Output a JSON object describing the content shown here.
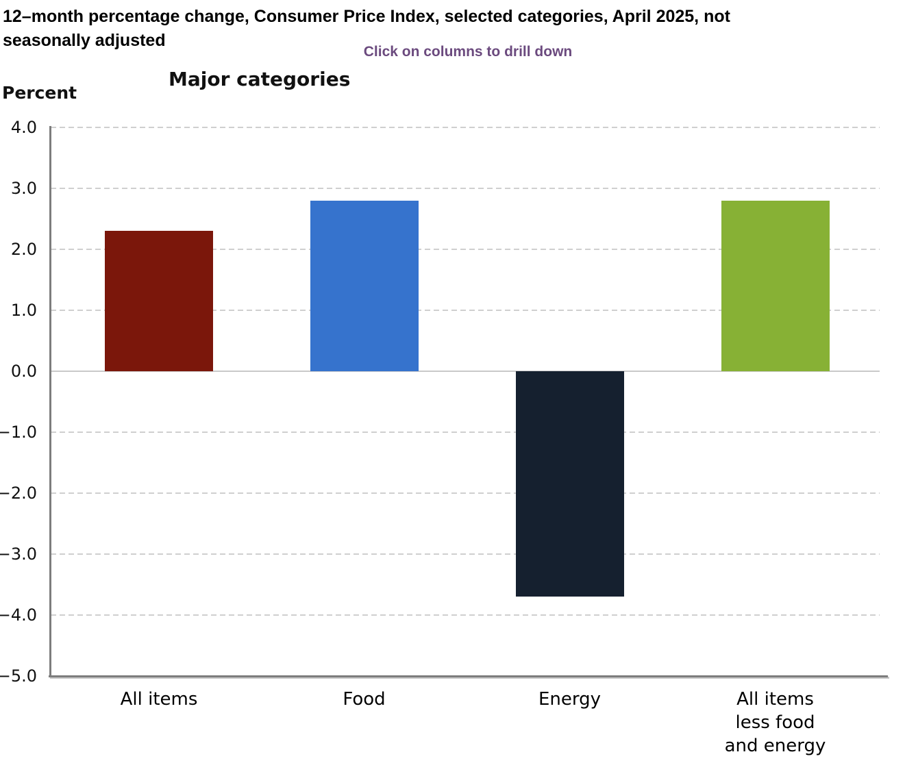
{
  "header": {
    "title_line1": "12–month percentage change, Consumer Price Index, selected categories, April 2025, not",
    "title_line2": "seasonally adjusted",
    "subtitle": "Click on columns to drill down",
    "subtitle_color": "#6b4a7e"
  },
  "chart": {
    "title": "Major categories",
    "unit_label": "Percent"
  },
  "chart_data": {
    "type": "bar",
    "title": "Major categories",
    "xlabel": "",
    "ylabel": "Percent",
    "categories": [
      "All items",
      "Food",
      "Energy",
      "All items less food and energy"
    ],
    "category_label_lines": [
      [
        "All items"
      ],
      [
        "Food"
      ],
      [
        "Energy"
      ],
      [
        "All items",
        "less food",
        "and energy"
      ]
    ],
    "values": [
      2.3,
      2.8,
      -3.7,
      2.8
    ],
    "bar_colors": [
      "#7b170b",
      "#3673cd",
      "#15202f",
      "#87b135"
    ],
    "ylim": [
      -5.0,
      4.0
    ],
    "ytick_step": 1.0,
    "ytick_labels": [
      "4.0",
      "3.0",
      "2.0",
      "1.0",
      "0.0",
      "−1.0",
      "−2.0",
      "−3.0",
      "−4.0",
      "−5.0"
    ],
    "grid": "horizontal-dashed",
    "legend": "none",
    "annotation": "Click on columns to drill down"
  }
}
